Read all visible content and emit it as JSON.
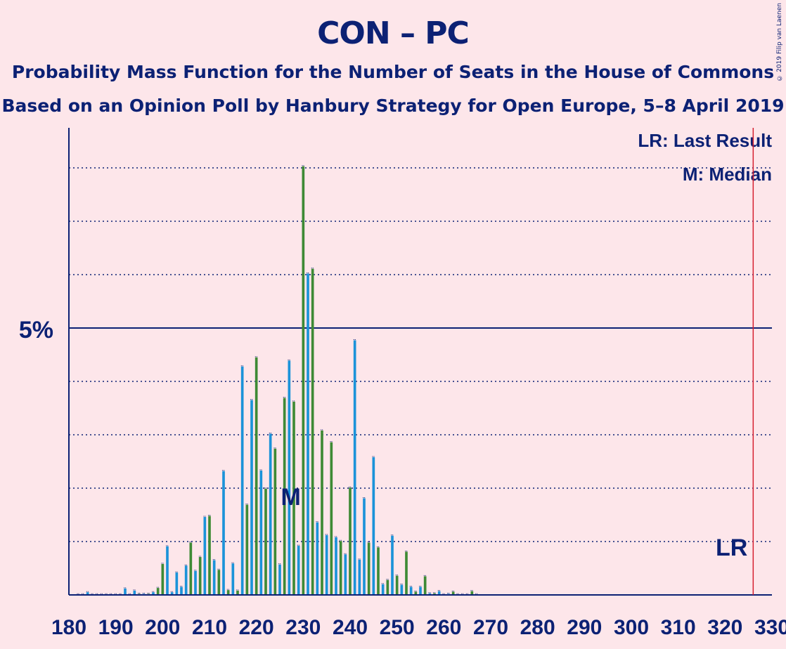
{
  "title": "CON – PC",
  "subtitle1": "Probability Mass Function for the Number of Seats in the House of Commons",
  "subtitle2": "Based on an Opinion Poll by Hanbury Strategy for Open Europe, 5–8 April 2019",
  "copyright": "© 2019 Filip van Laenen",
  "legend": {
    "lr": "LR: Last Result",
    "median": "M: Median"
  },
  "markers": {
    "median_label": "M",
    "last_result_label": "LR"
  },
  "colors": {
    "background": "#fde6ea",
    "text": "#0c2174",
    "bar_blue": "#1b93d9",
    "bar_green": "#3e8a35",
    "last_result_line": "#d62030"
  },
  "chart_data": {
    "type": "bar",
    "x_ticks": [
      180,
      190,
      200,
      210,
      220,
      230,
      240,
      250,
      260,
      270,
      280,
      290,
      300,
      310,
      320,
      330
    ],
    "xlim": [
      180,
      330
    ],
    "ylim": [
      0,
      8.75
    ],
    "y_gridlines": [
      1,
      2,
      3,
      4,
      5,
      6,
      7,
      8
    ],
    "y_label_value": 5,
    "y_label": "5%",
    "median_seat": 229,
    "last_result_seat": 326,
    "seats": [
      182,
      183,
      184,
      185,
      186,
      187,
      188,
      189,
      190,
      191,
      192,
      193,
      194,
      195,
      196,
      197,
      198,
      199,
      200,
      201,
      202,
      203,
      204,
      205,
      206,
      207,
      208,
      209,
      210,
      211,
      212,
      213,
      214,
      215,
      216,
      217,
      218,
      219,
      220,
      221,
      222,
      223,
      224,
      225,
      226,
      227,
      228,
      229,
      230,
      231,
      232,
      233,
      234,
      235,
      236,
      237,
      238,
      239,
      240,
      241,
      242,
      243,
      244,
      245,
      246,
      247,
      248,
      249,
      250,
      251,
      252,
      253,
      254,
      255,
      256,
      257,
      258,
      259,
      260,
      261,
      262,
      263,
      264,
      265,
      266,
      267
    ],
    "values": [
      0.01,
      0.01,
      0.05,
      0.01,
      0.01,
      0.01,
      0.01,
      0.01,
      0.01,
      0.01,
      0.12,
      0.01,
      0.08,
      0.02,
      0.02,
      0.02,
      0.05,
      0.13,
      0.58,
      0.91,
      0.05,
      0.42,
      0.15,
      0.55,
      0.98,
      0.45,
      0.71,
      1.46,
      1.48,
      0.65,
      0.47,
      2.32,
      0.09,
      0.59,
      0.08,
      4.28,
      1.69,
      3.65,
      4.45,
      2.33,
      1.99,
      3.02,
      2.74,
      0.57,
      3.69,
      4.39,
      3.62,
      0.92,
      8.03,
      6.02,
      6.11,
      1.36,
      3.08,
      1.12,
      2.86,
      1.08,
      1.01,
      0.76,
      2.01,
      4.77,
      0.66,
      1.81,
      0.98,
      2.58,
      0.89,
      0.2,
      0.28,
      1.11,
      0.36,
      0.19,
      0.81,
      0.15,
      0.06,
      0.15,
      0.35,
      0.03,
      0.03,
      0.07,
      0.01,
      0.02,
      0.06,
      0.01,
      0.01,
      0.01,
      0.07,
      0.01
    ],
    "colors": [
      "blue",
      "green",
      "blue",
      "green",
      "blue",
      "green",
      "blue",
      "green",
      "blue",
      "green",
      "blue",
      "green",
      "blue",
      "green",
      "blue",
      "green",
      "blue",
      "green",
      "green",
      "blue",
      "blue",
      "blue",
      "blue",
      "blue",
      "green",
      "blue",
      "green",
      "blue",
      "green",
      "blue",
      "green",
      "blue",
      "green",
      "blue",
      "green",
      "blue",
      "green",
      "blue",
      "green",
      "blue",
      "green",
      "blue",
      "green",
      "blue",
      "green",
      "blue",
      "green",
      "blue",
      "green",
      "blue",
      "green",
      "blue",
      "green",
      "blue",
      "green",
      "blue",
      "green",
      "blue",
      "green",
      "blue",
      "blue",
      "blue",
      "green",
      "blue",
      "green",
      "blue",
      "green",
      "blue",
      "green",
      "blue",
      "green",
      "blue",
      "green",
      "blue",
      "green",
      "blue",
      "green",
      "blue",
      "green",
      "blue",
      "green",
      "blue",
      "green",
      "blue",
      "green",
      "blue",
      "green",
      "blue",
      "green"
    ]
  }
}
